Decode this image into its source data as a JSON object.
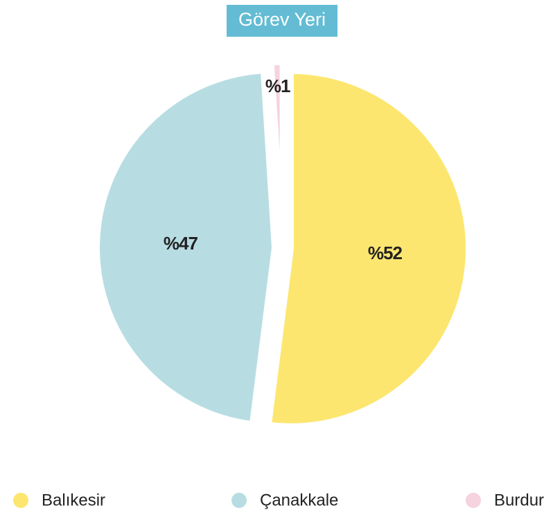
{
  "chart_data": {
    "type": "pie",
    "title": "Görev Yeri",
    "categories": [
      "Balıkesir",
      "Çanakkale",
      "Burdur"
    ],
    "values": [
      52,
      47,
      1
    ],
    "value_labels": [
      "%52",
      "%47",
      "%1"
    ],
    "colors": [
      "#fde66f",
      "#b7dde3",
      "#f5d3df"
    ],
    "title_color": "#63bcd3"
  }
}
